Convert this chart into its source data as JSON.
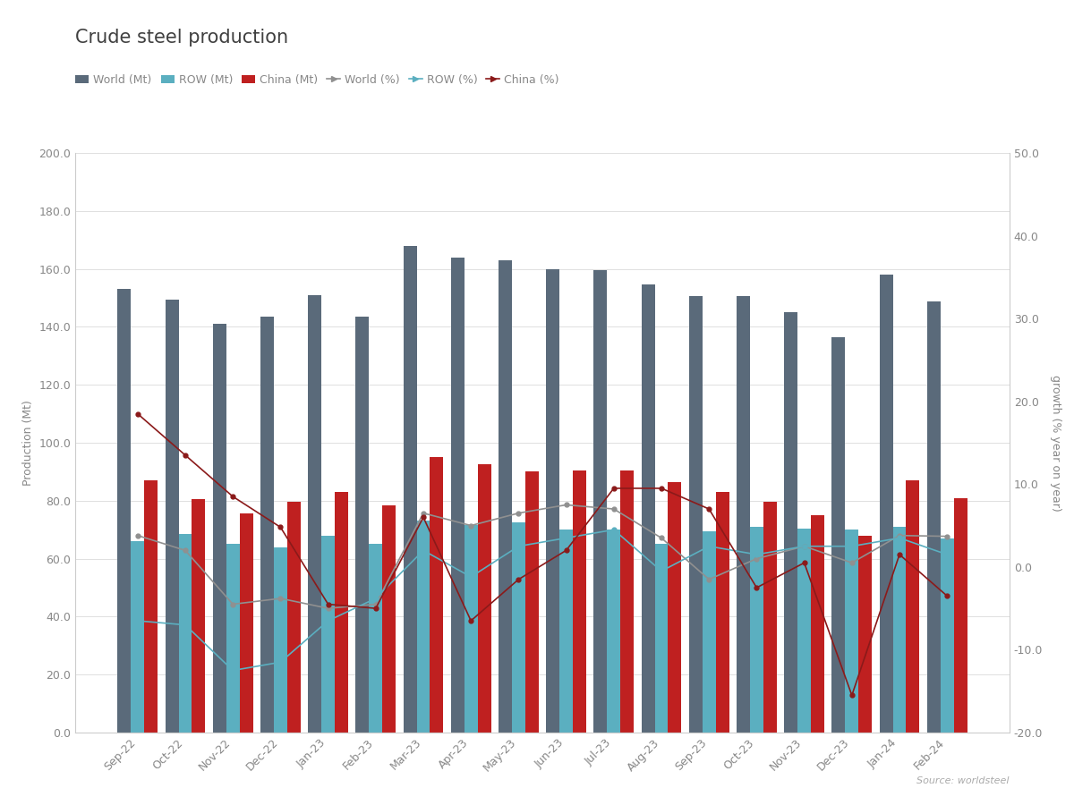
{
  "title": "Crude steel production",
  "ylabel_left": "Production (Mt)",
  "ylabel_right": "growth (% year on year)",
  "source": "Source: worldsteel",
  "categories": [
    "Sep-22",
    "Oct-22",
    "Nov-22",
    "Dec-22",
    "Jan-23",
    "Feb-23",
    "Mar-23",
    "Apr-23",
    "May-23",
    "Jun-23",
    "Jul-23",
    "Aug-23",
    "Sep-23",
    "Oct-23",
    "Nov-23",
    "Dec-23",
    "Jan-24",
    "Feb-24"
  ],
  "world_mt": [
    153.0,
    149.5,
    141.0,
    143.5,
    151.0,
    143.5,
    168.0,
    164.0,
    163.0,
    160.0,
    159.5,
    154.5,
    150.5,
    150.5,
    145.0,
    136.5,
    158.0,
    148.8
  ],
  "row_mt": [
    66.0,
    68.5,
    65.0,
    64.0,
    68.0,
    65.0,
    73.0,
    71.5,
    72.5,
    70.0,
    70.0,
    65.0,
    69.5,
    71.0,
    70.5,
    70.0,
    71.0,
    67.0
  ],
  "china_mt": [
    87.0,
    80.5,
    75.5,
    79.5,
    83.0,
    78.5,
    95.0,
    92.5,
    90.0,
    90.5,
    90.5,
    86.5,
    83.0,
    79.5,
    75.0,
    68.0,
    87.0,
    81.0
  ],
  "world_pct": [
    3.8,
    2.0,
    -4.5,
    -3.8,
    -5.0,
    -4.5,
    6.5,
    5.0,
    6.5,
    7.5,
    7.0,
    3.5,
    -1.5,
    1.0,
    2.5,
    0.5,
    3.8,
    3.7
  ],
  "row_pct": [
    -6.5,
    -7.0,
    -12.5,
    -11.5,
    -6.5,
    -3.8,
    2.0,
    -1.2,
    2.5,
    3.5,
    4.5,
    -0.5,
    2.5,
    1.5,
    2.5,
    2.5,
    3.5,
    1.5
  ],
  "china_pct": [
    18.5,
    13.5,
    8.5,
    4.8,
    -4.5,
    -5.0,
    6.0,
    -6.5,
    -1.5,
    2.0,
    9.5,
    9.5,
    7.0,
    -2.5,
    0.5,
    -15.5,
    1.5,
    -3.5
  ],
  "ylim_left": [
    0.0,
    200.0
  ],
  "ylim_right": [
    -20.0,
    50.0
  ],
  "yticks_left": [
    0.0,
    20.0,
    40.0,
    60.0,
    80.0,
    100.0,
    120.0,
    140.0,
    160.0,
    180.0,
    200.0
  ],
  "yticks_right": [
    -20.0,
    -10.0,
    0.0,
    10.0,
    20.0,
    30.0,
    40.0,
    50.0
  ],
  "color_world_bar": "#5a6a7a",
  "color_row_bar": "#5bafc0",
  "color_china_bar": "#bf2020",
  "color_world_line": "#909090",
  "color_row_line": "#5bafc0",
  "color_china_line": "#8b1a1a",
  "bar_width": 0.28,
  "fig_bg": "#ffffff",
  "plot_bg": "#ffffff",
  "title_fontsize": 15,
  "label_fontsize": 9,
  "tick_fontsize": 9,
  "legend_fontsize": 9
}
